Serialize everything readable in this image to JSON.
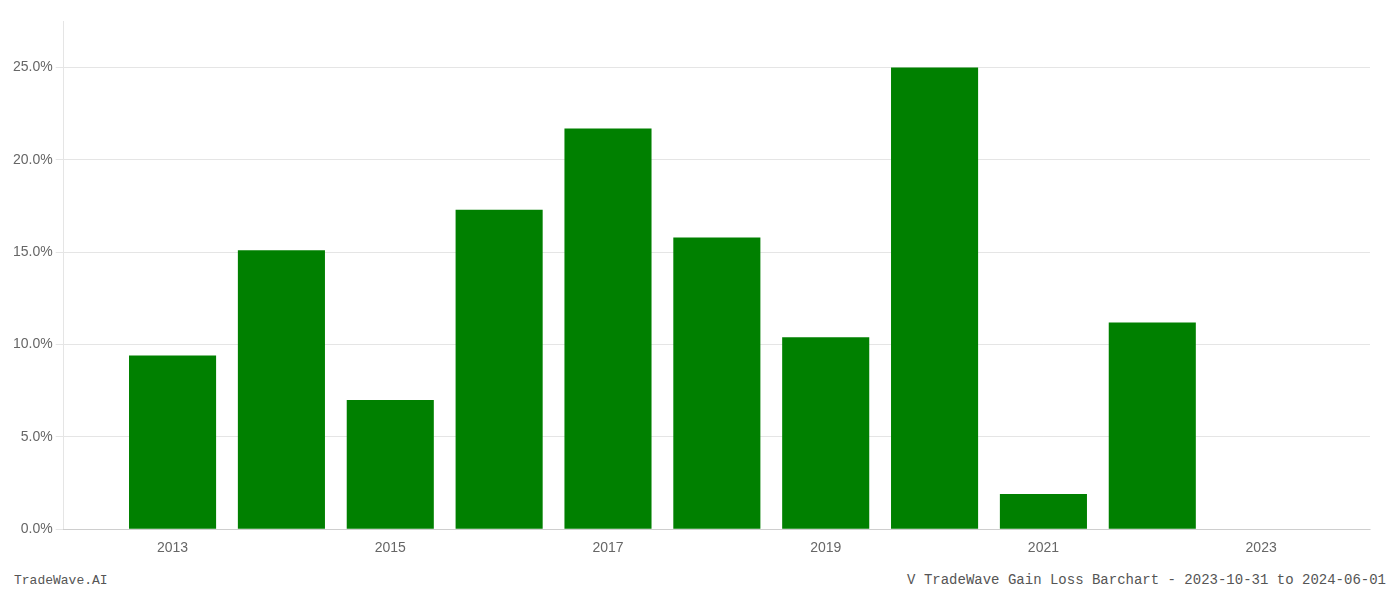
{
  "chart_data": {
    "type": "bar",
    "title": "V TradeWave Gain Loss Barchart - 2023-10-31 to 2024-06-01",
    "annotations": [
      "TradeWave.AI"
    ],
    "x": [
      2013,
      2014,
      2015,
      2016,
      2017,
      2018,
      2019,
      2020,
      2021,
      2022
    ],
    "values": [
      0.094,
      0.151,
      0.07,
      0.173,
      0.217,
      0.158,
      0.104,
      0.25,
      0.019,
      0.112
    ],
    "color": "#008000",
    "xlim": [
      2012.0,
      2024.0
    ],
    "xticks": [
      2013,
      2015,
      2017,
      2019,
      2021,
      2023
    ],
    "ylim": [
      0,
      0.275
    ],
    "yticks": [
      {
        "value": 0.0,
        "label": "0.0%"
      },
      {
        "value": 0.05,
        "label": "5.0%"
      },
      {
        "value": 0.1,
        "label": "10.0%"
      },
      {
        "value": 0.15,
        "label": "15.0%"
      },
      {
        "value": 0.2,
        "label": "20.0%"
      },
      {
        "value": 0.25,
        "label": "25.0%"
      }
    ],
    "grid": "y"
  }
}
